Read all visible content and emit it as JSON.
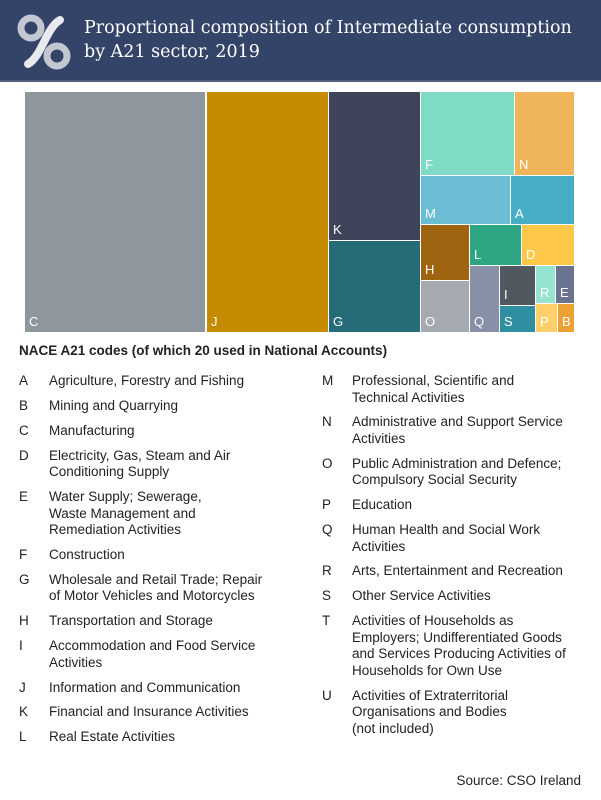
{
  "header": {
    "title": "Proportional composition of Intermediate consumption by A21 sector, 2019",
    "logo_icon": "cso-logo-icon"
  },
  "chart_data": {
    "type": "treemap",
    "title": "Proportional composition of Intermediate consumption by A21 sector, 2019",
    "unit": "approximate share (%)",
    "cells": [
      {
        "code": "C",
        "value": 32.8,
        "color": "#8f979e"
      },
      {
        "code": "J",
        "value": 22.0,
        "color": "#c68a00"
      },
      {
        "code": "K",
        "value": 10.2,
        "color": "#3e4459"
      },
      {
        "code": "G",
        "value": 6.3,
        "color": "#256b78"
      },
      {
        "code": "F",
        "value": 5.9,
        "color": "#80dbc6"
      },
      {
        "code": "N",
        "value": 3.7,
        "color": "#f0b55a"
      },
      {
        "code": "M",
        "value": 3.2,
        "color": "#6bbdd4"
      },
      {
        "code": "A",
        "value": 2.3,
        "color": "#46adc6"
      },
      {
        "code": "H",
        "value": 2.0,
        "color": "#9e6410"
      },
      {
        "code": "O",
        "value": 1.9,
        "color": "#a4aaaf"
      },
      {
        "code": "L",
        "value": 1.5,
        "color": "#2ea583"
      },
      {
        "code": "D",
        "value": 1.6,
        "color": "#ffc84a"
      },
      {
        "code": "Q",
        "value": 1.5,
        "color": "#8890a8"
      },
      {
        "code": "I",
        "value": 1.0,
        "color": "#52585f"
      },
      {
        "code": "S",
        "value": 0.7,
        "color": "#2f8fa0"
      },
      {
        "code": "R",
        "value": 0.5,
        "color": "#96e3cf"
      },
      {
        "code": "E",
        "value": 0.5,
        "color": "#6a7390"
      },
      {
        "code": "P",
        "value": 0.4,
        "color": "#ffd06a"
      },
      {
        "code": "B",
        "value": 0.3,
        "color": "#eda034"
      }
    ]
  },
  "legend": {
    "title": "NACE A21 codes (of which 20 used in National Accounts)",
    "left": [
      {
        "code": "A",
        "desc": "Agriculture, Forestry and Fishing"
      },
      {
        "code": "B",
        "desc": "Mining and Quarrying"
      },
      {
        "code": "C",
        "desc": "Manufacturing"
      },
      {
        "code": "D",
        "desc": "Electricity, Gas, Steam and Air\nConditioning Supply"
      },
      {
        "code": "E",
        "desc": "Water Supply; Sewerage,\nWaste Management and\nRemediation Activities"
      },
      {
        "code": "F",
        "desc": "Construction"
      },
      {
        "code": "G",
        "desc": "Wholesale and Retail Trade; Repair\nof Motor Vehicles and Motorcycles"
      },
      {
        "code": "H",
        "desc": "Transportation and Storage"
      },
      {
        "code": "I",
        "desc": "Accommodation and Food Service\nActivities"
      },
      {
        "code": "J",
        "desc": "Information and Communication"
      },
      {
        "code": "K",
        "desc": "Financial and Insurance Activities"
      },
      {
        "code": "L",
        "desc": "Real Estate Activities"
      }
    ],
    "right": [
      {
        "code": "M",
        "desc": "Professional, Scientific and\nTechnical Activities"
      },
      {
        "code": "N",
        "desc": "Administrative and Support Service\nActivities"
      },
      {
        "code": "O",
        "desc": "Public Administration and Defence;\nCompulsory Social Security"
      },
      {
        "code": "P",
        "desc": "Education"
      },
      {
        "code": "Q",
        "desc": "Human Health and Social Work\nActivities"
      },
      {
        "code": "R",
        "desc": "Arts, Entertainment and Recreation"
      },
      {
        "code": "S",
        "desc": "Other Service Activities"
      },
      {
        "code": "T",
        "desc": "Activities of Households as\nEmployers; Undifferentiated Goods\nand Services Producing Activities of\nHouseholds for Own Use"
      },
      {
        "code": "U",
        "desc": "Activities of Extraterritorial\nOrganisations and Bodies\n(not included)"
      }
    ]
  },
  "source": "Source:  CSO Ireland"
}
